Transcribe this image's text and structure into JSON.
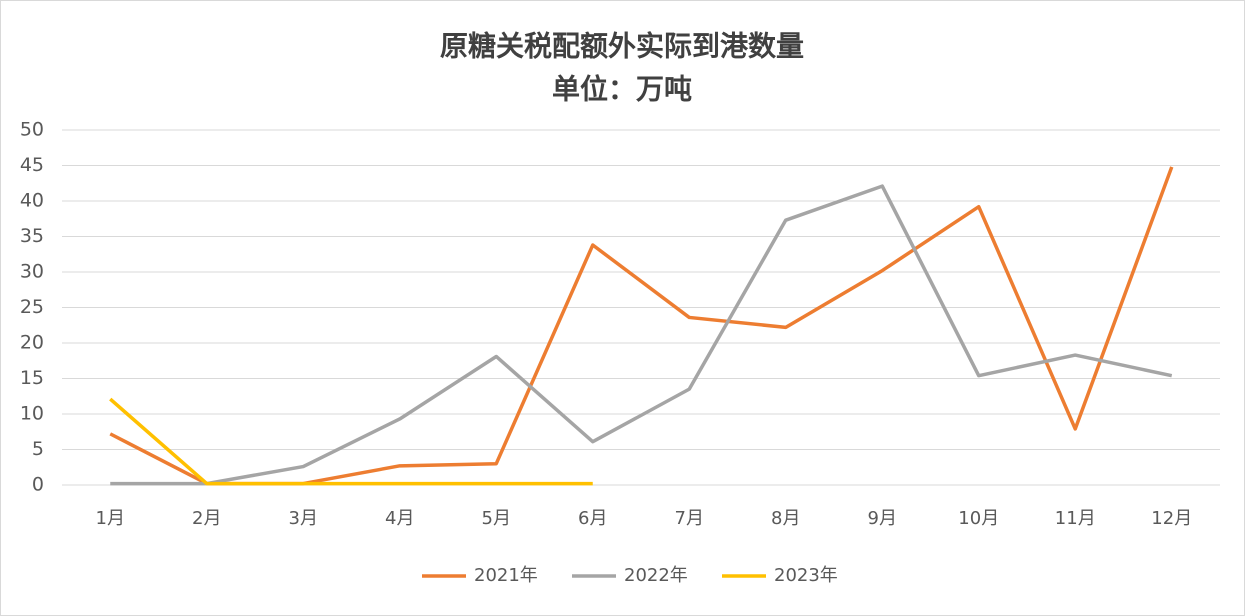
{
  "chart_data": {
    "type": "line",
    "title": "原糖关税配额外实际到港数量",
    "subtitle": "单位：万吨",
    "categories": [
      "1月",
      "2月",
      "3月",
      "4月",
      "5月",
      "6月",
      "7月",
      "8月",
      "9月",
      "10月",
      "11月",
      "12月"
    ],
    "series": [
      {
        "name": "2021年",
        "color": "#ed7d31",
        "values": [
          7.2,
          0.2,
          0.2,
          2.7,
          3.0,
          33.8,
          23.6,
          22.2,
          30.2,
          39.2,
          7.9,
          44.8
        ]
      },
      {
        "name": "2022年",
        "color": "#a5a5a5",
        "values": [
          0.2,
          0.2,
          2.6,
          9.3,
          18.1,
          6.1,
          13.5,
          37.3,
          42.1,
          15.4,
          18.3,
          15.4
        ]
      },
      {
        "name": "2023年",
        "color": "#ffc000",
        "values": [
          12.1,
          0.2,
          0.2,
          0.2,
          0.2,
          0.2,
          null,
          null,
          null,
          null,
          null,
          null
        ]
      }
    ],
    "ylim": [
      0,
      50
    ],
    "yticks": [
      0,
      5,
      10,
      15,
      20,
      25,
      30,
      35,
      40,
      45,
      50
    ],
    "grid": true,
    "legend": "bottom"
  }
}
